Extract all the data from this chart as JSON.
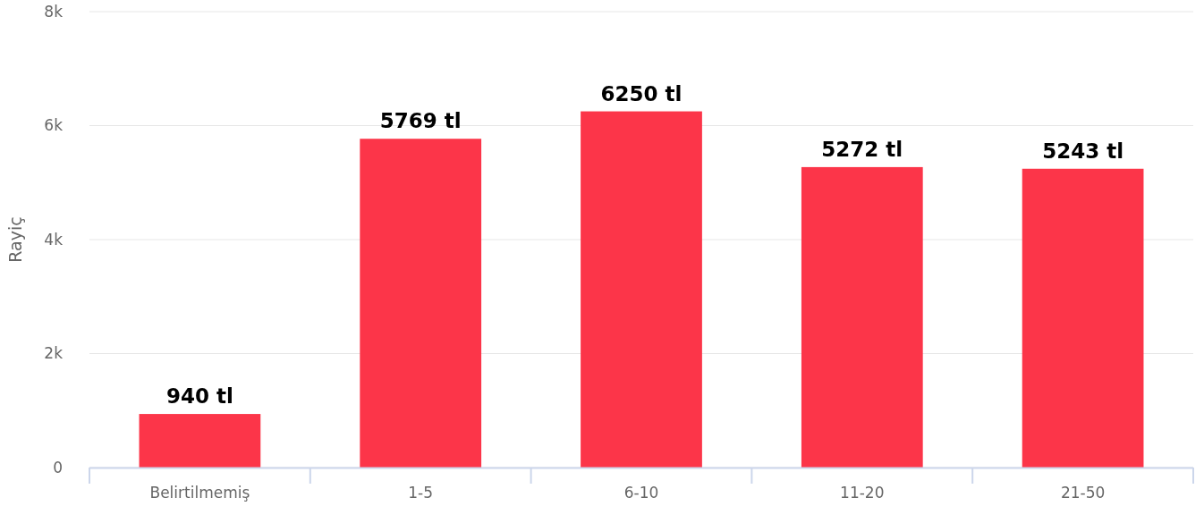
{
  "chart_data": {
    "type": "bar",
    "ylabel": "Rayiç",
    "categories": [
      "Belirtilmemiş",
      "1-5",
      "6-10",
      "11-20",
      "21-50"
    ],
    "values": [
      940,
      5769,
      6250,
      5272,
      5243
    ],
    "value_labels": [
      "940 tl",
      "5769 tl",
      "6250 tl",
      "5272 tl",
      "5243 tl"
    ],
    "color": "#fc3549",
    "ylim": [
      0,
      8000
    ],
    "yticks": [
      0,
      {
        "value": 2000,
        "label": "2k"
      },
      {
        "value": 4000,
        "label": "4k"
      },
      {
        "value": 6000,
        "label": "6k"
      },
      {
        "value": 8000,
        "label": "8k"
      }
    ],
    "grid": "y"
  }
}
